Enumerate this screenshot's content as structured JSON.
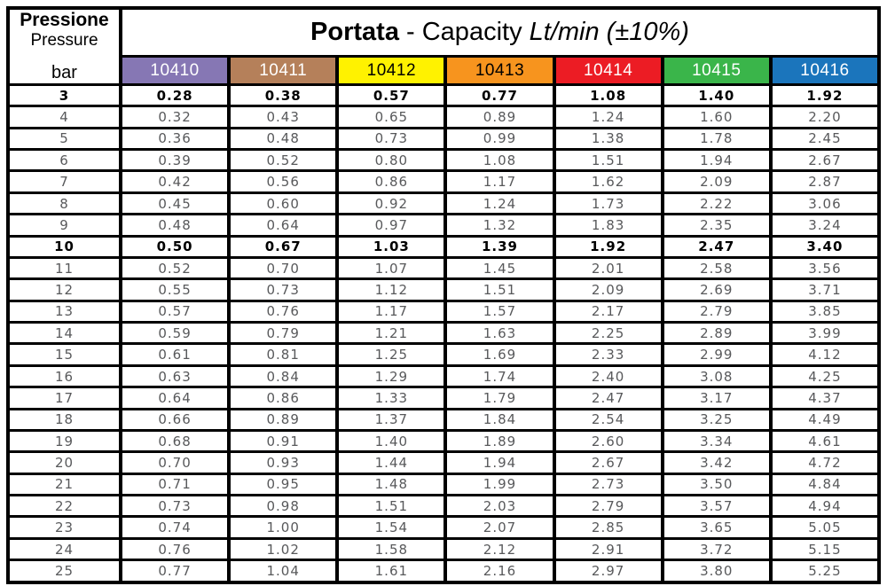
{
  "header": {
    "pressure_label_it": "Pressione",
    "pressure_label_en": "Pressure",
    "pressure_unit": "bar",
    "title_bold": "Portata",
    "title_normal": " - Capacity ",
    "title_italic": "Lt/min (±10%)"
  },
  "columns": [
    {
      "code": "10410",
      "color": "#8677B4",
      "text_color": "#FFFFFF"
    },
    {
      "code": "10411",
      "color": "#B5805A",
      "text_color": "#FFFFFF"
    },
    {
      "code": "10412",
      "color": "#FFF200",
      "text_color": "#000000"
    },
    {
      "code": "10413",
      "color": "#F7941E",
      "text_color": "#000000"
    },
    {
      "code": "10414",
      "color": "#EC1C24",
      "text_color": "#FFFFFF"
    },
    {
      "code": "10415",
      "color": "#3AB54A",
      "text_color": "#FFFFFF"
    },
    {
      "code": "10416",
      "color": "#1B75BC",
      "text_color": "#FFFFFF"
    }
  ],
  "rows": [
    {
      "bar": "3",
      "bold": true,
      "values": [
        "0.28",
        "0.38",
        "0.57",
        "0.77",
        "1.08",
        "1.40",
        "1.92"
      ]
    },
    {
      "bar": "4",
      "bold": false,
      "values": [
        "0.32",
        "0.43",
        "0.65",
        "0.89",
        "1.24",
        "1.60",
        "2.20"
      ]
    },
    {
      "bar": "5",
      "bold": false,
      "values": [
        "0.36",
        "0.48",
        "0.73",
        "0.99",
        "1.38",
        "1.78",
        "2.45"
      ]
    },
    {
      "bar": "6",
      "bold": false,
      "values": [
        "0.39",
        "0.52",
        "0.80",
        "1.08",
        "1.51",
        "1.94",
        "2.67"
      ]
    },
    {
      "bar": "7",
      "bold": false,
      "values": [
        "0.42",
        "0.56",
        "0.86",
        "1.17",
        "1.62",
        "2.09",
        "2.87"
      ]
    },
    {
      "bar": "8",
      "bold": false,
      "values": [
        "0.45",
        "0.60",
        "0.92",
        "1.24",
        "1.73",
        "2.22",
        "3.06"
      ]
    },
    {
      "bar": "9",
      "bold": false,
      "values": [
        "0.48",
        "0.64",
        "0.97",
        "1.32",
        "1.83",
        "2.35",
        "3.24"
      ]
    },
    {
      "bar": "10",
      "bold": true,
      "values": [
        "0.50",
        "0.67",
        "1.03",
        "1.39",
        "1.92",
        "2.47",
        "3.40"
      ]
    },
    {
      "bar": "11",
      "bold": false,
      "values": [
        "0.52",
        "0.70",
        "1.07",
        "1.45",
        "2.01",
        "2.58",
        "3.56"
      ]
    },
    {
      "bar": "12",
      "bold": false,
      "values": [
        "0.55",
        "0.73",
        "1.12",
        "1.51",
        "2.09",
        "2.69",
        "3.71"
      ]
    },
    {
      "bar": "13",
      "bold": false,
      "values": [
        "0.57",
        "0.76",
        "1.17",
        "1.57",
        "2.17",
        "2.79",
        "3.85"
      ]
    },
    {
      "bar": "14",
      "bold": false,
      "values": [
        "0.59",
        "0.79",
        "1.21",
        "1.63",
        "2.25",
        "2.89",
        "3.99"
      ]
    },
    {
      "bar": "15",
      "bold": false,
      "values": [
        "0.61",
        "0.81",
        "1.25",
        "1.69",
        "2.33",
        "2.99",
        "4.12"
      ]
    },
    {
      "bar": "16",
      "bold": false,
      "values": [
        "0.63",
        "0.84",
        "1.29",
        "1.74",
        "2.40",
        "3.08",
        "4.25"
      ]
    },
    {
      "bar": "17",
      "bold": false,
      "values": [
        "0.64",
        "0.86",
        "1.33",
        "1.79",
        "2.47",
        "3.17",
        "4.37"
      ]
    },
    {
      "bar": "18",
      "bold": false,
      "values": [
        "0.66",
        "0.89",
        "1.37",
        "1.84",
        "2.54",
        "3.25",
        "4.49"
      ]
    },
    {
      "bar": "19",
      "bold": false,
      "values": [
        "0.68",
        "0.91",
        "1.40",
        "1.89",
        "2.60",
        "3.34",
        "4.61"
      ]
    },
    {
      "bar": "20",
      "bold": false,
      "values": [
        "0.70",
        "0.93",
        "1.44",
        "1.94",
        "2.67",
        "3.42",
        "4.72"
      ]
    },
    {
      "bar": "21",
      "bold": false,
      "values": [
        "0.71",
        "0.95",
        "1.48",
        "1.99",
        "2.73",
        "3.50",
        "4.84"
      ]
    },
    {
      "bar": "22",
      "bold": false,
      "values": [
        "0.73",
        "0.98",
        "1.51",
        "2.03",
        "2.79",
        "3.57",
        "4.94"
      ]
    },
    {
      "bar": "23",
      "bold": false,
      "values": [
        "0.74",
        "1.00",
        "1.54",
        "2.07",
        "2.85",
        "3.65",
        "5.05"
      ]
    },
    {
      "bar": "24",
      "bold": false,
      "values": [
        "0.76",
        "1.02",
        "1.58",
        "2.12",
        "2.91",
        "3.72",
        "5.15"
      ]
    },
    {
      "bar": "25",
      "bold": false,
      "values": [
        "0.77",
        "1.04",
        "1.61",
        "2.16",
        "2.97",
        "3.80",
        "5.25"
      ]
    }
  ]
}
